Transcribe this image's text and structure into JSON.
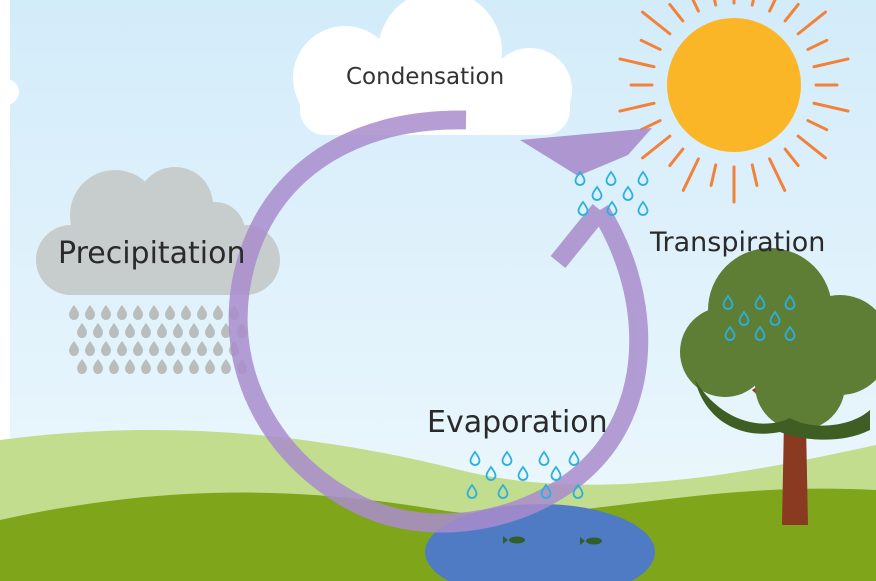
{
  "diagram": {
    "labels": {
      "condensation": "Condensation",
      "precipitation": "Precipitation",
      "transpiration": "Transpiration",
      "evaporation": "Evaporation"
    },
    "colors": {
      "sky_top": "#d6eefb",
      "sky_bottom": "#e9f6fd",
      "hill_light": "#c3dd8f",
      "hill_dark": "#7fa51b",
      "cycle_arrow": "#a98ccc",
      "cloud_white": "#ffffff",
      "rain_cloud": "#c7cdcc",
      "rain_drops": "#b8bcbc",
      "sun": "#fbb627",
      "sun_rays": "#f2823a",
      "water_drops": "#2ab0df",
      "lake": "#4f7bc4",
      "tree_canopy": "#5e7d35",
      "tree_canopy_dark": "#3f5e24",
      "tree_trunk": "#8b3a22"
    }
  }
}
